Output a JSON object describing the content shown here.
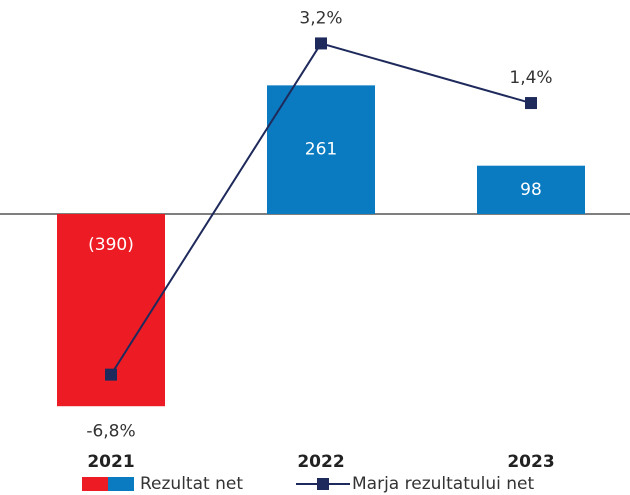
{
  "chart_data": {
    "type": "bar",
    "categories": [
      "2021",
      "2022",
      "2023"
    ],
    "ylim": [
      -420,
      420
    ],
    "y2lim": [
      -8.2,
      4.3
    ],
    "series": [
      {
        "name": "Rezultat net",
        "type": "bar",
        "colors": [
          "#ed1c24",
          "#0a7bc0",
          "#0a7bc0"
        ],
        "values": [
          -390,
          261,
          98
        ],
        "value_labels": [
          "(390)",
          "261",
          "98"
        ]
      },
      {
        "name": "Marja rezultatului net",
        "type": "line",
        "axis": "y2",
        "color": "#1f2a5c",
        "values": [
          -6.8,
          3.2,
          1.4
        ],
        "value_labels": [
          "-6,8%",
          "3,2%",
          "1,4%"
        ]
      }
    ]
  }
}
